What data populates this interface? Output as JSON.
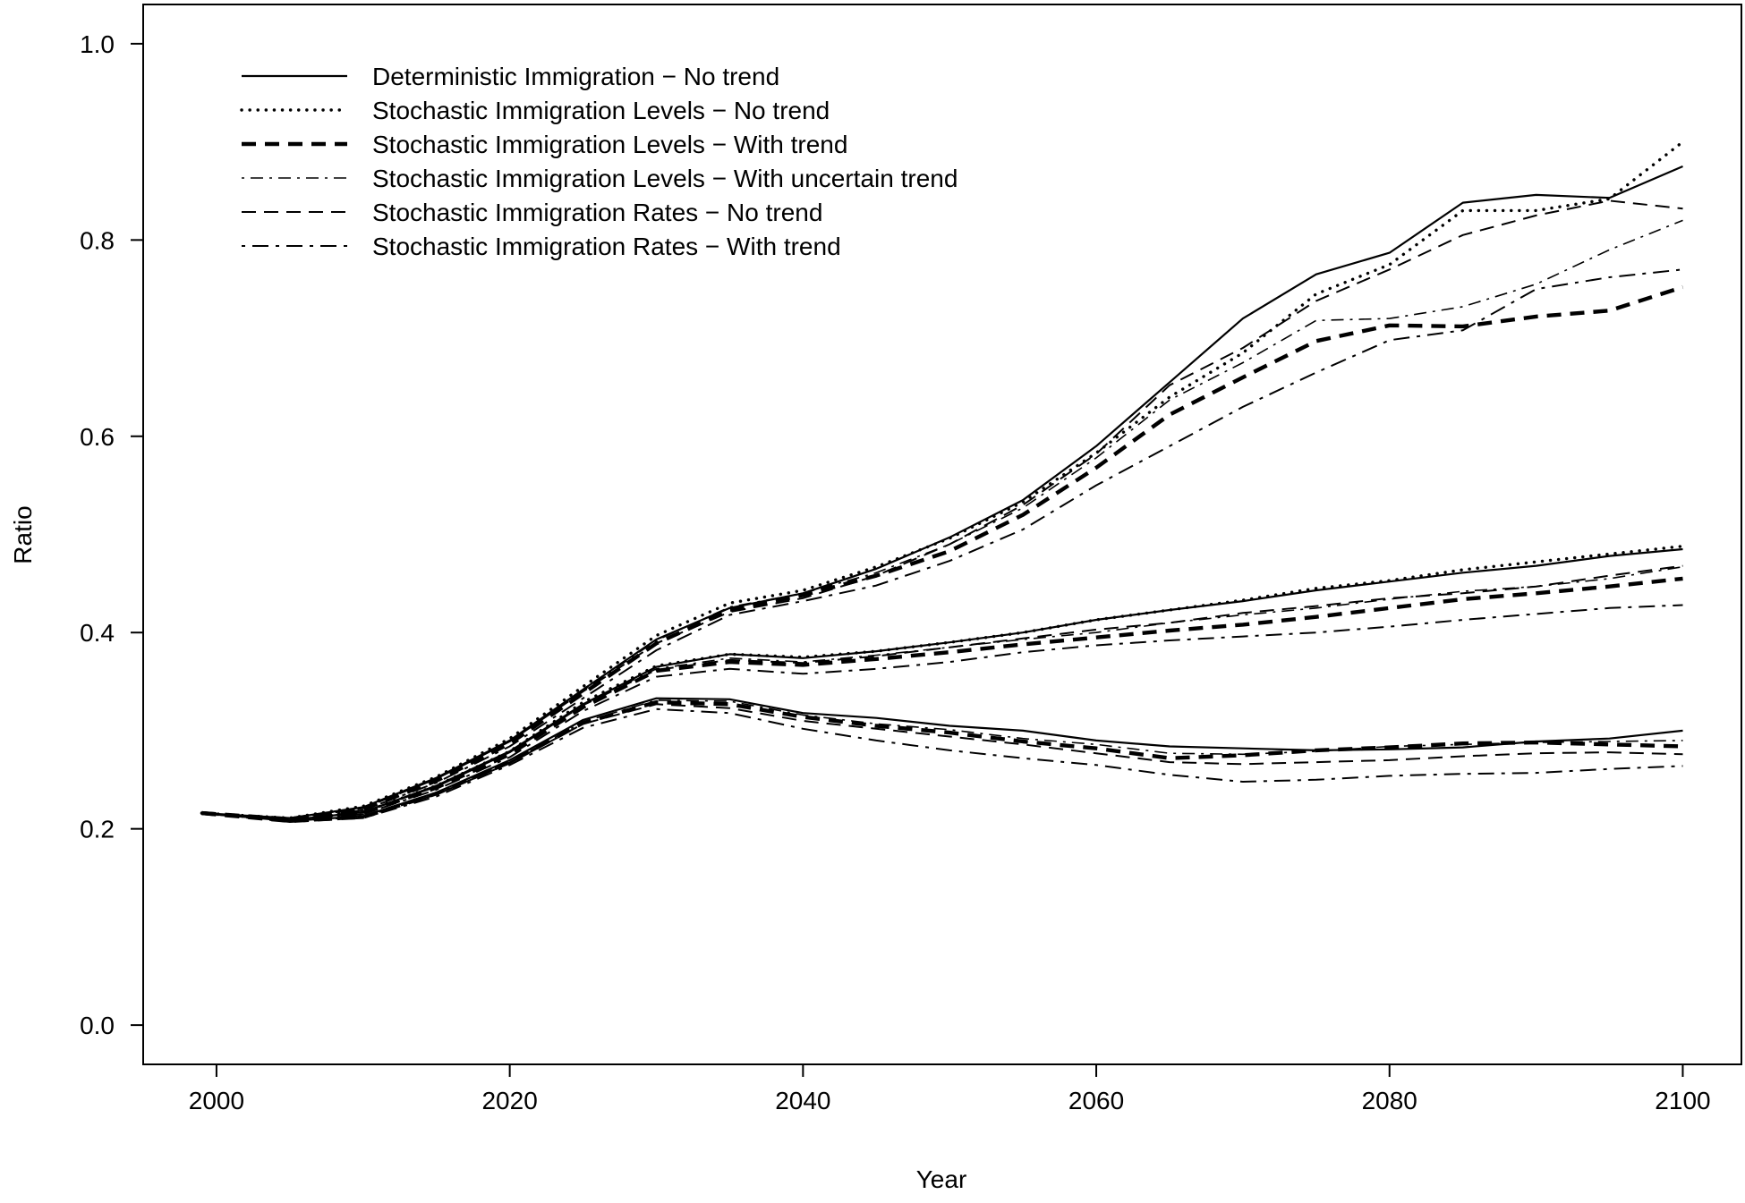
{
  "chart_data": {
    "type": "line",
    "title": "",
    "xlabel": "Year",
    "ylabel": "Ratio",
    "xlim": [
      1995,
      2104
    ],
    "ylim": [
      -0.04,
      1.04
    ],
    "x_ticks": [
      2000,
      2020,
      2040,
      2060,
      2080,
      2100
    ],
    "x_tick_labels": [
      "2000",
      "2020",
      "2040",
      "2060",
      "2080",
      "2100"
    ],
    "y_ticks": [
      0.0,
      0.2,
      0.4,
      0.6,
      0.8,
      1.0
    ],
    "y_tick_labels": [
      "0.0",
      "0.2",
      "0.4",
      "0.6",
      "0.8",
      "1.0"
    ],
    "grid": false,
    "legend_position": "top-left",
    "line_color": "#000000",
    "x": [
      1999,
      2005,
      2010,
      2015,
      2020,
      2025,
      2030,
      2035,
      2040,
      2045,
      2050,
      2055,
      2060,
      2065,
      2070,
      2075,
      2080,
      2085,
      2090,
      2095,
      2100
    ],
    "series": [
      {
        "name": "Deterministic Immigration − No trend",
        "style": "solid",
        "bands": [
          [
            0.216,
            0.211,
            0.222,
            0.252,
            0.29,
            0.342,
            0.393,
            0.425,
            0.44,
            0.465,
            0.497,
            0.535,
            0.59,
            0.655,
            0.72,
            0.765,
            0.787,
            0.838,
            0.846,
            0.843,
            0.875
          ],
          [
            0.216,
            0.209,
            0.217,
            0.244,
            0.279,
            0.327,
            0.365,
            0.378,
            0.374,
            0.381,
            0.39,
            0.4,
            0.413,
            0.423,
            0.432,
            0.443,
            0.452,
            0.461,
            0.468,
            0.478,
            0.485
          ],
          [
            0.216,
            0.208,
            0.213,
            0.237,
            0.27,
            0.311,
            0.333,
            0.332,
            0.318,
            0.313,
            0.305,
            0.3,
            0.29,
            0.284,
            0.282,
            0.28,
            0.281,
            0.283,
            0.289,
            0.292,
            0.3
          ]
        ]
      },
      {
        "name": "Stochastic Immigration Levels − No trend",
        "style": "dotted",
        "bands": [
          [
            0.216,
            0.211,
            0.223,
            0.253,
            0.292,
            0.345,
            0.397,
            0.43,
            0.443,
            0.467,
            0.496,
            0.533,
            0.583,
            0.64,
            0.685,
            0.745,
            0.775,
            0.83,
            0.83,
            0.842,
            0.9
          ],
          [
            0.216,
            0.209,
            0.217,
            0.244,
            0.279,
            0.329,
            0.366,
            0.378,
            0.375,
            0.381,
            0.39,
            0.4,
            0.413,
            0.423,
            0.433,
            0.445,
            0.453,
            0.464,
            0.472,
            0.48,
            0.488
          ]
        ]
      },
      {
        "name": "Stochastic Immigration Levels − With trend",
        "style": "dashed-bold",
        "bands": [
          [
            0.216,
            0.21,
            0.22,
            0.249,
            0.287,
            0.338,
            0.389,
            0.423,
            0.438,
            0.458,
            0.483,
            0.52,
            0.568,
            0.622,
            0.66,
            0.697,
            0.713,
            0.712,
            0.722,
            0.728,
            0.752
          ],
          [
            0.216,
            0.209,
            0.216,
            0.242,
            0.276,
            0.324,
            0.361,
            0.37,
            0.367,
            0.373,
            0.38,
            0.388,
            0.395,
            0.402,
            0.408,
            0.416,
            0.425,
            0.434,
            0.44,
            0.447,
            0.455
          ],
          [
            0.216,
            0.208,
            0.212,
            0.236,
            0.268,
            0.308,
            0.329,
            0.327,
            0.314,
            0.305,
            0.298,
            0.289,
            0.282,
            0.272,
            0.275,
            0.28,
            0.283,
            0.287,
            0.288,
            0.286,
            0.284
          ]
        ]
      },
      {
        "name": "Stochastic Immigration Levels − With uncertain trend",
        "style": "dashdot-thin",
        "bands": [
          [
            0.216,
            0.21,
            0.222,
            0.251,
            0.289,
            0.341,
            0.392,
            0.426,
            0.44,
            0.461,
            0.49,
            0.527,
            0.578,
            0.637,
            0.675,
            0.718,
            0.72,
            0.732,
            0.755,
            0.79,
            0.82
          ],
          [
            0.216,
            0.209,
            0.217,
            0.243,
            0.278,
            0.327,
            0.363,
            0.374,
            0.37,
            0.377,
            0.385,
            0.393,
            0.4,
            0.41,
            0.418,
            0.425,
            0.434,
            0.442,
            0.447,
            0.455,
            0.467
          ],
          [
            0.216,
            0.208,
            0.213,
            0.236,
            0.268,
            0.309,
            0.331,
            0.33,
            0.316,
            0.307,
            0.301,
            0.292,
            0.286,
            0.277,
            0.276,
            0.279,
            0.284,
            0.286,
            0.288,
            0.289,
            0.29
          ]
        ]
      },
      {
        "name": "Stochastic Immigration Rates − No trend",
        "style": "dashed",
        "bands": [
          [
            0.216,
            0.21,
            0.221,
            0.251,
            0.289,
            0.34,
            0.389,
            0.421,
            0.435,
            0.458,
            0.49,
            0.53,
            0.582,
            0.652,
            0.69,
            0.738,
            0.77,
            0.805,
            0.825,
            0.84,
            0.832
          ],
          [
            0.216,
            0.209,
            0.217,
            0.243,
            0.278,
            0.326,
            0.362,
            0.372,
            0.369,
            0.376,
            0.385,
            0.394,
            0.403,
            0.41,
            0.42,
            0.427,
            0.435,
            0.44,
            0.447,
            0.458,
            0.468
          ],
          [
            0.216,
            0.208,
            0.212,
            0.235,
            0.267,
            0.307,
            0.327,
            0.323,
            0.31,
            0.302,
            0.294,
            0.286,
            0.277,
            0.268,
            0.266,
            0.268,
            0.27,
            0.274,
            0.277,
            0.278,
            0.276
          ]
        ]
      },
      {
        "name": "Stochastic Immigration Rates − With trend",
        "style": "dashdot",
        "bands": [
          [
            0.216,
            0.209,
            0.219,
            0.247,
            0.284,
            0.333,
            0.382,
            0.418,
            0.432,
            0.448,
            0.473,
            0.505,
            0.55,
            0.59,
            0.63,
            0.665,
            0.698,
            0.708,
            0.75,
            0.762,
            0.77
          ],
          [
            0.216,
            0.208,
            0.215,
            0.24,
            0.273,
            0.32,
            0.355,
            0.363,
            0.358,
            0.363,
            0.37,
            0.38,
            0.387,
            0.392,
            0.396,
            0.4,
            0.406,
            0.413,
            0.419,
            0.425,
            0.428
          ],
          [
            0.216,
            0.207,
            0.211,
            0.233,
            0.265,
            0.303,
            0.322,
            0.318,
            0.302,
            0.29,
            0.28,
            0.272,
            0.265,
            0.255,
            0.248,
            0.25,
            0.254,
            0.256,
            0.257,
            0.261,
            0.264
          ]
        ]
      }
    ]
  }
}
